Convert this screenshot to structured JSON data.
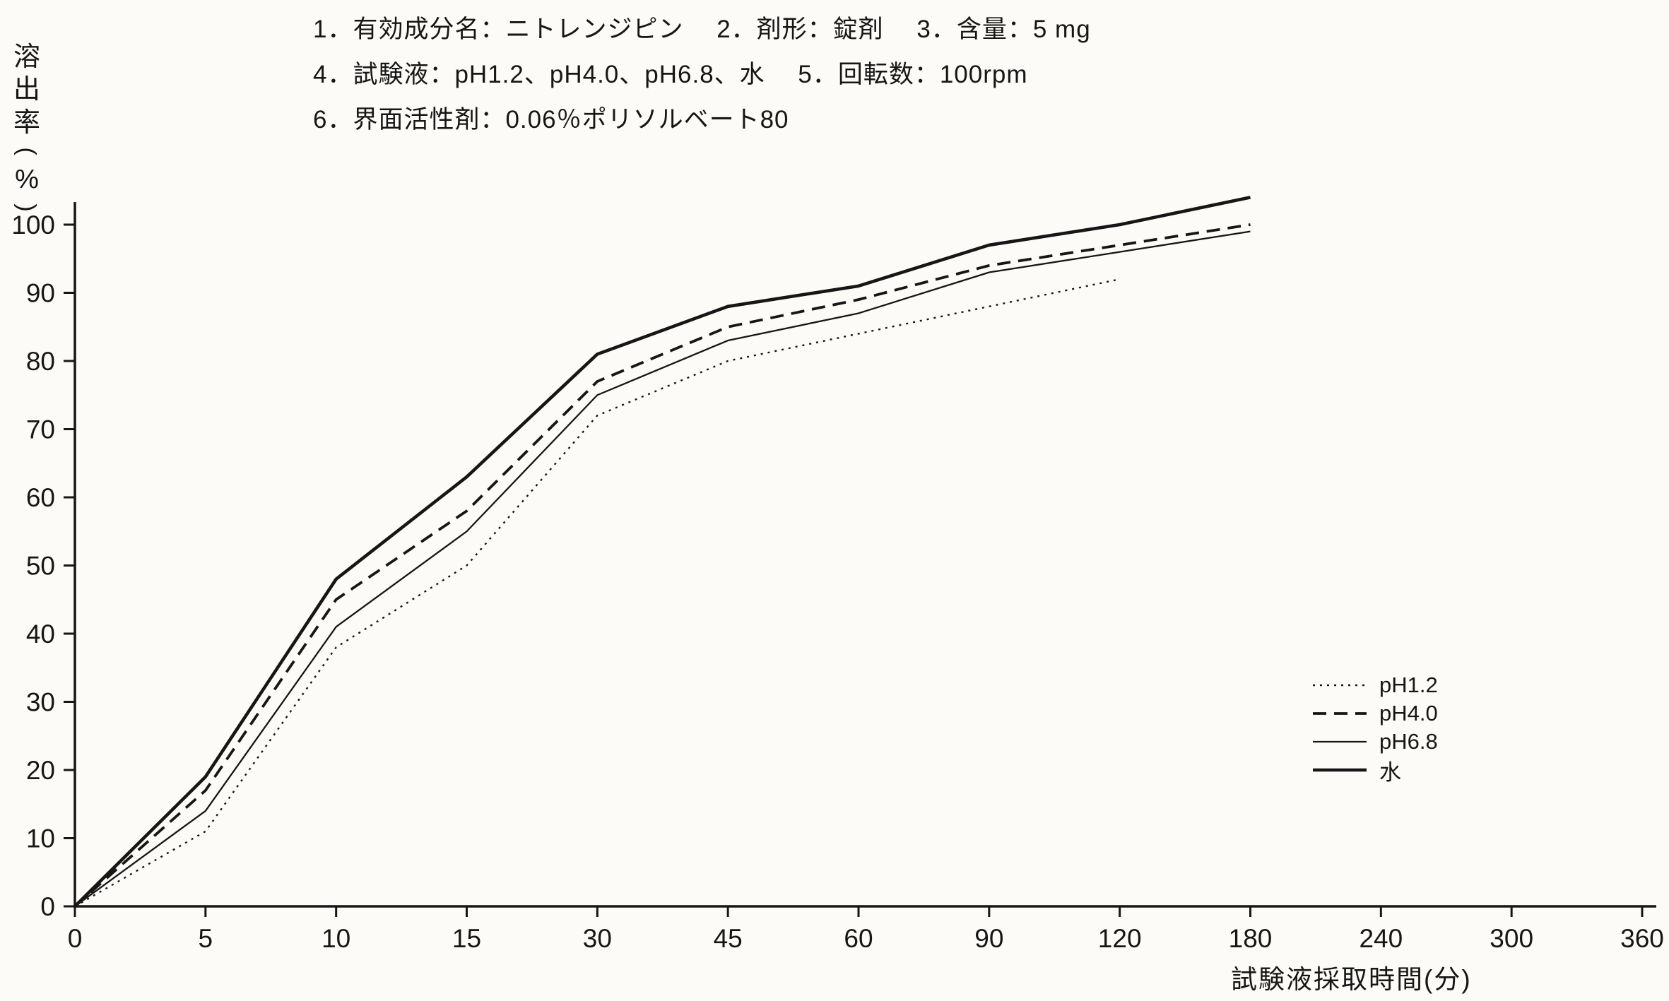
{
  "header": {
    "lines": [
      "1．有効成分名：ニトレンジピン　 2．剤形：錠剤　 3．含量：5 mg",
      "4．試験液：pH1.2、pH4.0、pH6.8、水　 5．回転数：100rpm",
      "6．界面活性剤：0.06％ポリソルベート80"
    ]
  },
  "chart_data": {
    "type": "line",
    "title": "",
    "xlabel": "試験液採取時間(分)",
    "ylabel": "溶出率(%)",
    "x_ticks": [
      0,
      5,
      10,
      15,
      30,
      45,
      60,
      90,
      120,
      180,
      240,
      300,
      360
    ],
    "y_ticks": [
      0,
      10,
      20,
      30,
      40,
      50,
      60,
      70,
      80,
      90,
      100
    ],
    "ylim": [
      0,
      105
    ],
    "x_axis_note": "time axis with equally spaced non-linear ticks (min)",
    "grid": false,
    "legend_position": "right-lower",
    "line_color": "#161616",
    "series": [
      {
        "name": "pH1.2",
        "style": "dotted",
        "times": [
          0,
          5,
          10,
          15,
          30,
          45,
          60,
          90,
          120
        ],
        "values": [
          0,
          11,
          38,
          50,
          72,
          80,
          84,
          88,
          92
        ]
      },
      {
        "name": "pH4.0",
        "style": "dashed",
        "times": [
          0,
          5,
          10,
          15,
          30,
          45,
          60,
          90,
          120,
          180
        ],
        "values": [
          0,
          17,
          45,
          58,
          77,
          85,
          89,
          94,
          97,
          100
        ]
      },
      {
        "name": "pH6.8",
        "style": "solid-thin",
        "times": [
          0,
          5,
          10,
          15,
          30,
          45,
          60,
          90,
          120,
          180
        ],
        "values": [
          0,
          14,
          41,
          55,
          75,
          83,
          87,
          93,
          96,
          99
        ]
      },
      {
        "name": "水",
        "style": "solid-thick",
        "times": [
          0,
          5,
          10,
          15,
          30,
          45,
          60,
          90,
          120,
          180
        ],
        "values": [
          0,
          19,
          48,
          63,
          81,
          88,
          91,
          97,
          100,
          104
        ]
      }
    ]
  }
}
